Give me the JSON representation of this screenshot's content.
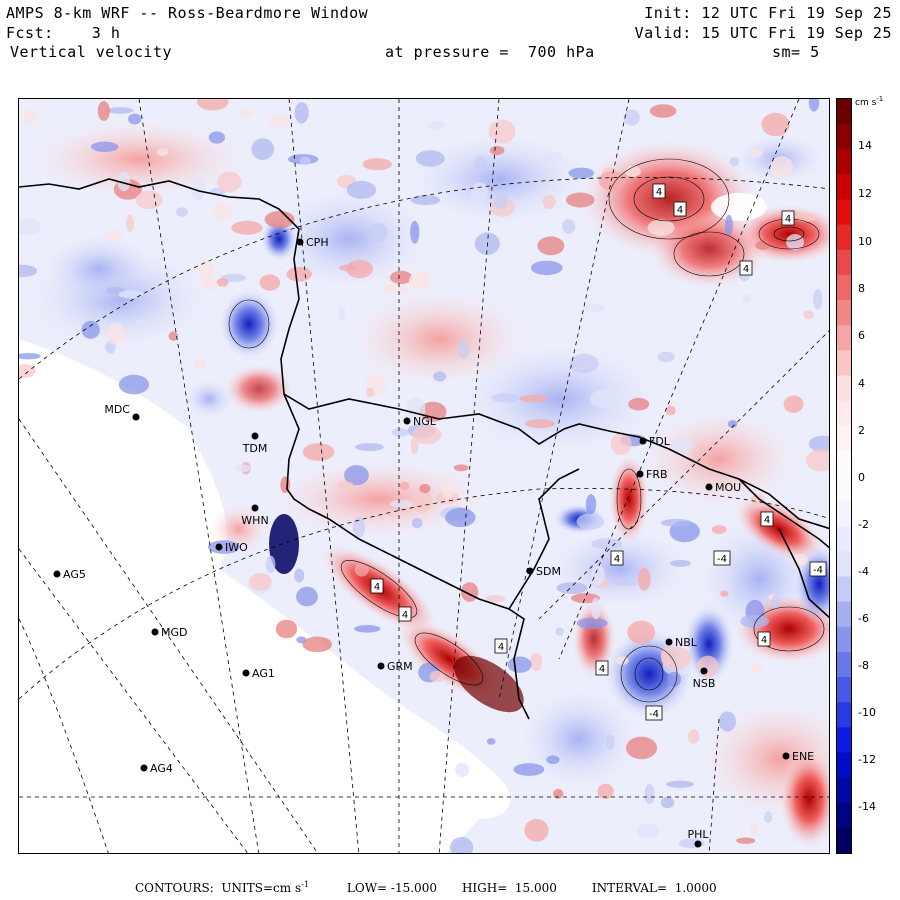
{
  "header": {
    "title": "AMPS 8-km WRF -- Ross-Beardmore Window",
    "forecast": "Fcst:    3 h",
    "field": "Vertical velocity",
    "init": "Init: 12 UTC Fri 19 Sep 25",
    "valid": "Valid: 15 UTC Fri 19 Sep 25",
    "pressure": "at pressure =  700 hPa",
    "smoothing": "sm= 5"
  },
  "colorbar": {
    "units": "cm s",
    "units_exponent": "-1",
    "ticks": [
      "14",
      "12",
      "10",
      "8",
      "6",
      "4",
      "2",
      "0",
      "-2",
      "-4",
      "-6",
      "-8",
      "-10",
      "-12",
      "-14"
    ],
    "range": [
      -15,
      15
    ],
    "colors": {
      "max": "#6a0000",
      "high": "#e00000",
      "mid_pos": "#f07070",
      "low_pos": "#fce0e0",
      "zero": "#ffffff",
      "low_neg": "#dfe3fa",
      "mid_neg": "#7080e8",
      "high_neg": "#0010e0",
      "min": "#000060"
    }
  },
  "stations": [
    {
      "name": "CPH"
    },
    {
      "name": "MDC"
    },
    {
      "name": "NGL"
    },
    {
      "name": "TDM"
    },
    {
      "name": "FDL"
    },
    {
      "name": "FRB"
    },
    {
      "name": "MOU"
    },
    {
      "name": "WHN"
    },
    {
      "name": "IWO"
    },
    {
      "name": "AG5"
    },
    {
      "name": "SDM"
    },
    {
      "name": "MGD"
    },
    {
      "name": "GRM"
    },
    {
      "name": "NBL"
    },
    {
      "name": "AG1"
    },
    {
      "name": "NSB"
    },
    {
      "name": "AG4"
    },
    {
      "name": "ENE"
    },
    {
      "name": "PHL"
    }
  ],
  "highs_lows": [
    "4",
    "4",
    "4",
    "4",
    "4",
    "4",
    "4",
    "4",
    "4",
    "4",
    "4",
    "-4",
    "-4",
    "-4"
  ],
  "footer": {
    "contours": "CONTOURS:  UNITS=cm s",
    "units_exp": "-1",
    "low": "LOW= -15.000",
    "high": "HIGH=  15.000",
    "interval": "INTERVAL=  1.0000"
  }
}
